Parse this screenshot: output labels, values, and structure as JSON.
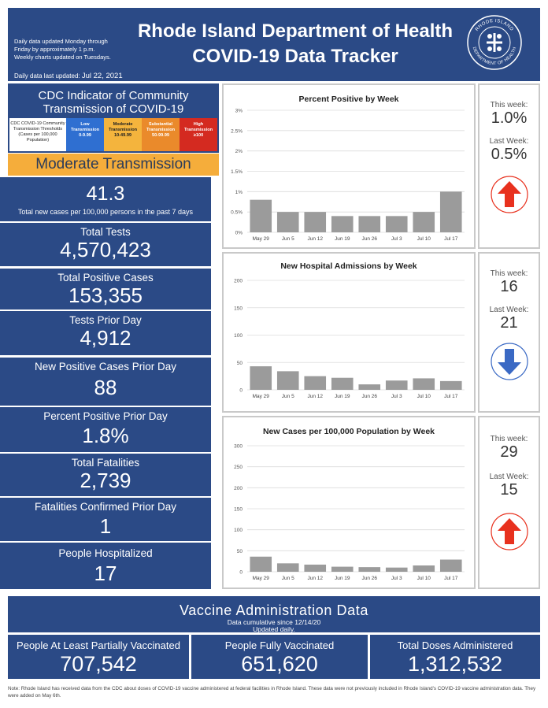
{
  "header": {
    "notes": [
      "Daily data updated Monday through",
      "Friday by approximately 1 p.m.",
      "Weekly charts updated on Tuesdays."
    ],
    "updated_prefix": "Daily data last updated:",
    "updated_date": "Jul 22, 2021",
    "title_line1": "Rhode Island Department of Health",
    "title_line2": "COVID-19 Data Tracker",
    "seal_top": "RHODE ISLAND",
    "seal_bottom": "DEPARTMENT OF HEALTH"
  },
  "cdc": {
    "title": "CDC Indicator of Community Transmission of COVID-19",
    "scale_desc": "CDC COVID-19 Community Transmission Thresholds (Cases per 100,000 Population)",
    "scale": [
      {
        "name": "Low",
        "sub": "Transmission",
        "range": "0-9.99"
      },
      {
        "name": "Moderate",
        "sub": "Transmission",
        "range": "10-49.99"
      },
      {
        "name": "Substantial",
        "sub": "Transmission",
        "range": "50-99.99"
      },
      {
        "name": "High",
        "sub": "Transmission",
        "range": "≥100"
      }
    ],
    "level": "Moderate Transmission",
    "rate": "41.3",
    "rate_caption": "Total new cases per 100,000 persons in the past 7 days"
  },
  "stats": [
    {
      "label": "Total Tests",
      "value": "4,570,423"
    },
    {
      "label": "Total Positive Cases",
      "value": "153,355"
    },
    {
      "label": "Tests Prior Day",
      "value": "4,912"
    },
    {
      "label": "New Positive Cases Prior Day",
      "value": "88"
    },
    {
      "label": "Percent Positive Prior Day",
      "value": "1.8%"
    },
    {
      "label": "Total Fatalities",
      "value": "2,739"
    },
    {
      "label": "Fatalities Confirmed Prior Day",
      "value": "1"
    },
    {
      "label": "People Hospitalized",
      "value": "17"
    }
  ],
  "weekly": [
    {
      "this_week_label": "This week:",
      "this_week": "1.0%",
      "last_week_label": "Last Week:",
      "last_week": "0.5%",
      "trend": "up",
      "trend_color": "#e8311e"
    },
    {
      "this_week_label": "This week:",
      "this_week": "16",
      "last_week_label": "Last Week:",
      "last_week": "21",
      "trend": "down",
      "trend_color": "#3a69c4"
    },
    {
      "this_week_label": "This week:",
      "this_week": "29",
      "last_week_label": "Last Week:",
      "last_week": "15",
      "trend": "up",
      "trend_color": "#e8311e"
    }
  ],
  "chart_data": [
    {
      "type": "bar",
      "title": "Percent Positive by Week",
      "categories": [
        "May 29",
        "Jun 5",
        "Jun 12",
        "Jun 19",
        "Jun 26",
        "Jul 3",
        "Jul 10",
        "Jul 17"
      ],
      "values": [
        0.8,
        0.5,
        0.5,
        0.4,
        0.4,
        0.4,
        0.5,
        1.0
      ],
      "yticks": [
        "0%",
        "0.5%",
        "1%",
        "1.5%",
        "2%",
        "2.5%",
        "3%"
      ],
      "ylim": [
        0,
        3
      ]
    },
    {
      "type": "bar",
      "title": "New Hospital Admissions by Week",
      "categories": [
        "May 29",
        "Jun 5",
        "Jun 12",
        "Jun 19",
        "Jun 26",
        "Jul 3",
        "Jul 10",
        "Jul 17"
      ],
      "values": [
        43,
        34,
        25,
        22,
        10,
        17,
        21,
        16
      ],
      "yticks": [
        "0",
        "50",
        "100",
        "150",
        "200"
      ],
      "ylim": [
        0,
        200
      ]
    },
    {
      "type": "bar",
      "title": "New Cases per 100,000 Population by Week",
      "categories": [
        "May 29",
        "Jun 5",
        "Jun 12",
        "Jun 19",
        "Jun 26",
        "Jul 3",
        "Jul 10",
        "Jul 17"
      ],
      "values": [
        36,
        20,
        17,
        12,
        11,
        10,
        15,
        29
      ],
      "yticks": [
        "0",
        "50",
        "100",
        "150",
        "200",
        "250",
        "300"
      ],
      "ylim": [
        0,
        300
      ]
    }
  ],
  "colors": {
    "navy": "#2b4a86",
    "bar_fill": "#9b9b9b",
    "amber": "#f5ad3b"
  },
  "vaccine": {
    "title": "Vaccine Administration Data",
    "sub1": "Data cumulative since 12/14/20",
    "sub2": "Updated daily.",
    "boxes": [
      {
        "label": "People At Least Partially Vaccinated",
        "value": "707,542"
      },
      {
        "label": "People Fully Vaccinated",
        "value": "651,620"
      },
      {
        "label": "Total Doses Administered",
        "value": "1,312,532"
      }
    ]
  },
  "footnote": "Note: Rhode Island has received data from the CDC about doses of COVID-19 vaccine administered at federal facilities in Rhode Island. These data were not previously included in Rhode Island's COVID-19 vaccine administration data. They were added on May 6th."
}
